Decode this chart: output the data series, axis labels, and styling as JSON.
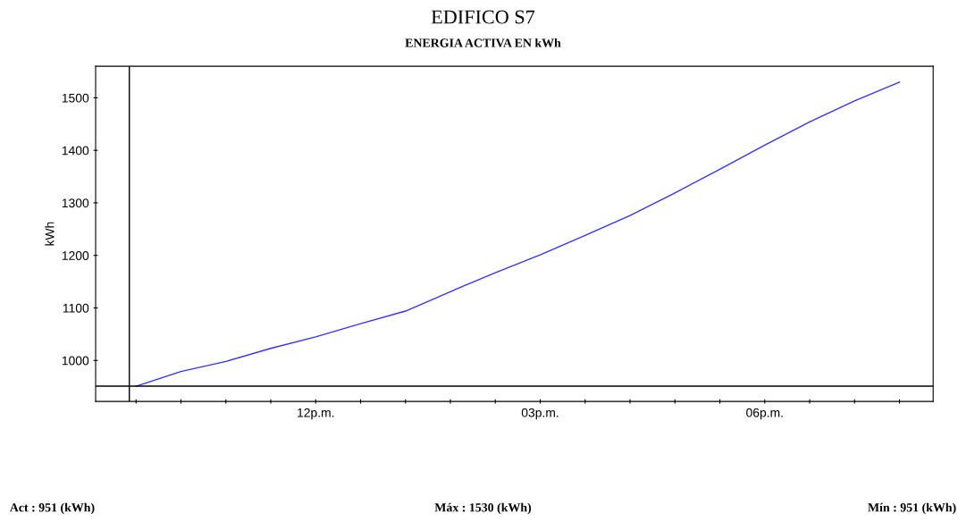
{
  "chart_data": {
    "type": "line",
    "title": "EDIFICO S7",
    "subtitle": "ENERGIA ACTIVA EN kWh",
    "ylabel": "kWh",
    "categories": [
      null,
      null,
      null,
      null,
      "12p.m.",
      null,
      null,
      null,
      null,
      "03p.m.",
      null,
      null,
      null,
      null,
      "06p.m.",
      null,
      null,
      null
    ],
    "series": [
      {
        "color": "#3333ff",
        "values": [
          951,
          979,
          998,
          1023,
          1045,
          1070,
          1094,
          1131,
          1167,
          1201,
          1238,
          1276,
          1319,
          1364,
          1410,
          1454,
          1494,
          1530
        ]
      }
    ],
    "ylim": [
      922,
      1560
    ],
    "yticks": [
      1000,
      1100,
      1200,
      1300,
      1400,
      1500
    ],
    "ref_lines": [
      {
        "axis": "y",
        "value": 951,
        "color": "#000000"
      }
    ],
    "annotations": [
      "Act : 951 (kWh)",
      "Máx : 1530 (kWh)",
      "Mín : 951 (kWh)"
    ],
    "grid": false,
    "legend": false,
    "marker": "none",
    "line_style": "solid"
  }
}
